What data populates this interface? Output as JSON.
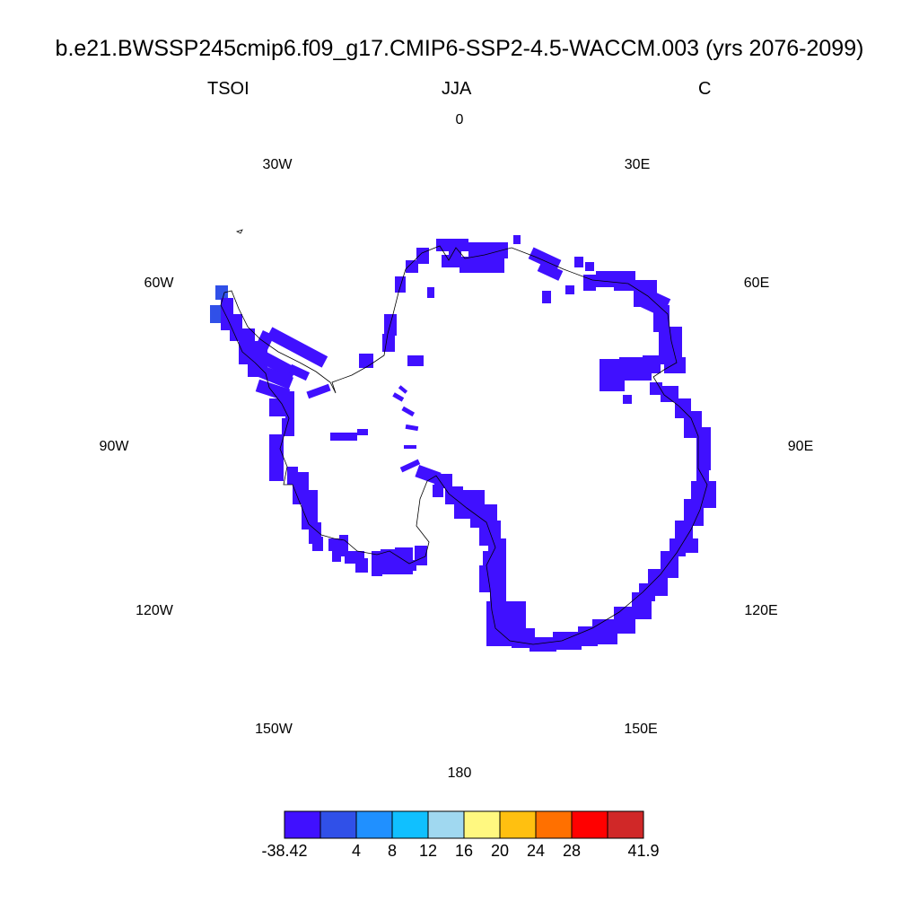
{
  "header": {
    "title": "b.e21.BWSSP245cmip6.f09_g17.CMIP6-SSP2-4.5-WACCM.003 (yrs 2076-2099)",
    "variable": "TSOI",
    "season": "JJA",
    "units": "C"
  },
  "map": {
    "projection": "south polar stereographic",
    "region": "Antarctica",
    "longitude_labels": [
      "0",
      "30E",
      "60E",
      "90E",
      "120E",
      "150E",
      "180",
      "150W",
      "120W",
      "90W",
      "60W",
      "30W"
    ],
    "field_note_color": "#4010ff",
    "peninsula_tip_color": "#3050e8"
  },
  "colorbar": {
    "colors": [
      "#4010ff",
      "#3050e8",
      "#2090ff",
      "#10c0ff",
      "#a0d8f0",
      "#fff880",
      "#ffc010",
      "#ff7000",
      "#ff0000",
      "#d02828"
    ],
    "labels": [
      "-38.42",
      "4",
      "8",
      "12",
      "16",
      "20",
      "24",
      "28",
      "41.9"
    ]
  }
}
